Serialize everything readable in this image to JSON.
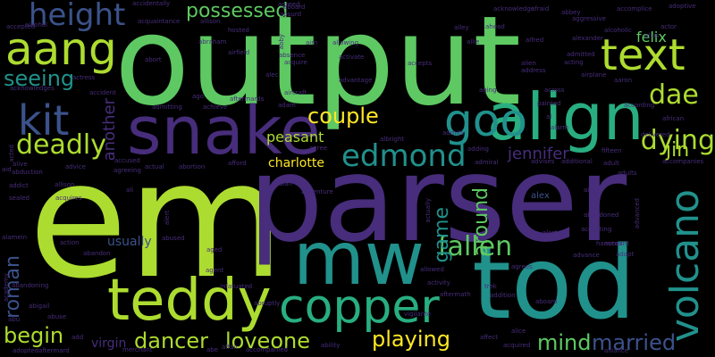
{
  "background": "#000000",
  "palette": {
    "purple": "#440154",
    "indigo": "#472d7b",
    "blue": "#3b528b",
    "steel": "#2c728e",
    "teal": "#21918c",
    "sea": "#28ae80",
    "green": "#5ec962",
    "lime": "#addc30",
    "yellow": "#fde725"
  },
  "words": [
    {
      "text": "output",
      "color": "green"
    },
    {
      "text": "em",
      "color": "lime"
    },
    {
      "text": "parser",
      "color": "indigo"
    },
    {
      "text": "tod",
      "color": "teal"
    },
    {
      "text": "mw",
      "color": "teal"
    },
    {
      "text": "snake",
      "color": "indigo"
    },
    {
      "text": "align",
      "color": "sea"
    },
    {
      "text": "teddy",
      "color": "lime"
    },
    {
      "text": "copper",
      "color": "sea"
    },
    {
      "text": "volcano",
      "color": "teal"
    },
    {
      "text": "text",
      "color": "lime"
    },
    {
      "text": "aang",
      "color": "lime"
    },
    {
      "text": "kit",
      "color": "blue"
    },
    {
      "text": "goo",
      "color": "teal"
    },
    {
      "text": "height",
      "color": "blue"
    },
    {
      "text": "edmond",
      "color": "teal"
    },
    {
      "text": "deadly",
      "color": "lime"
    },
    {
      "text": "couple",
      "color": "yellow"
    },
    {
      "text": "dae",
      "color": "lime"
    },
    {
      "text": "dying",
      "color": "lime"
    },
    {
      "text": "fallen",
      "color": "green"
    },
    {
      "text": "possessed",
      "color": "green"
    },
    {
      "text": "seeing",
      "color": "teal"
    },
    {
      "text": "begin",
      "color": "lime"
    },
    {
      "text": "dancer",
      "color": "lime"
    },
    {
      "text": "loveone",
      "color": "lime"
    },
    {
      "text": "playing",
      "color": "yellow"
    },
    {
      "text": "mind",
      "color": "green"
    },
    {
      "text": "married",
      "color": "blue"
    },
    {
      "text": "jennifer",
      "color": "indigo"
    },
    {
      "text": "jin",
      "color": "lime"
    },
    {
      "text": "roman",
      "color": "blue"
    },
    {
      "text": "around",
      "color": "green"
    },
    {
      "text": "game",
      "color": "teal"
    },
    {
      "text": "another",
      "color": "indigo"
    },
    {
      "text": "charlotte",
      "color": "yellow"
    },
    {
      "text": "peasant",
      "color": "lime"
    },
    {
      "text": "felix",
      "color": "green"
    },
    {
      "text": "usually",
      "color": "blue"
    },
    {
      "text": "virgin",
      "color": "indigo"
    },
    {
      "text": "alex",
      "color": "blue"
    },
    {
      "text": "accidentally",
      "color": "indigo"
    },
    {
      "text": "abbey",
      "color": "indigo"
    },
    {
      "text": "acknowledge",
      "color": "indigo"
    },
    {
      "text": "accomplice",
      "color": "indigo"
    },
    {
      "text": "adoptive",
      "color": "indigo"
    },
    {
      "text": "agreed",
      "color": "indigo"
    },
    {
      "text": "afraid",
      "color": "indigo"
    },
    {
      "text": "accepted",
      "color": "indigo"
    },
    {
      "text": "alcohol",
      "color": "indigo"
    },
    {
      "text": "acquaintance",
      "color": "indigo"
    },
    {
      "text": "absurd",
      "color": "indigo"
    },
    {
      "text": "allison",
      "color": "indigo"
    },
    {
      "text": "hosted",
      "color": "indigo"
    },
    {
      "text": "alley",
      "color": "indigo"
    },
    {
      "text": "ahead",
      "color": "indigo"
    },
    {
      "text": "aggressive",
      "color": "indigo"
    },
    {
      "text": "alcoholic",
      "color": "indigo"
    },
    {
      "text": "actor",
      "color": "indigo"
    },
    {
      "text": "abraham",
      "color": "indigo"
    },
    {
      "text": "allowing",
      "color": "indigo"
    },
    {
      "text": "alfred",
      "color": "indigo"
    },
    {
      "text": "alexander",
      "color": "indigo"
    },
    {
      "text": "alias",
      "color": "indigo"
    },
    {
      "text": "airfield",
      "color": "indigo"
    },
    {
      "text": "abby",
      "color": "indigo"
    },
    {
      "text": "aim",
      "color": "indigo"
    },
    {
      "text": "allie",
      "color": "indigo"
    },
    {
      "text": "admitted",
      "color": "indigo"
    },
    {
      "text": "aboard",
      "color": "indigo"
    },
    {
      "text": "abort",
      "color": "indigo"
    },
    {
      "text": "absence",
      "color": "indigo"
    },
    {
      "text": "acquire",
      "color": "indigo"
    },
    {
      "text": "activate",
      "color": "indigo"
    },
    {
      "text": "accepts",
      "color": "indigo"
    },
    {
      "text": "alien",
      "color": "indigo"
    },
    {
      "text": "address",
      "color": "indigo"
    },
    {
      "text": "airplane",
      "color": "indigo"
    },
    {
      "text": "acting",
      "color": "indigo"
    },
    {
      "text": "acknowledges",
      "color": "indigo"
    },
    {
      "text": "actress",
      "color": "indigo"
    },
    {
      "text": "accident",
      "color": "indigo"
    },
    {
      "text": "alec",
      "color": "indigo"
    },
    {
      "text": "advantage",
      "color": "indigo"
    },
    {
      "text": "aging",
      "color": "indigo"
    },
    {
      "text": "across",
      "color": "indigo"
    },
    {
      "text": "aaron",
      "color": "indigo"
    },
    {
      "text": "ago",
      "color": "indigo"
    },
    {
      "text": "aircraft",
      "color": "indigo"
    },
    {
      "text": "according",
      "color": "indigo"
    },
    {
      "text": "admitting",
      "color": "indigo"
    },
    {
      "text": "achieve",
      "color": "indigo"
    },
    {
      "text": "aftermards",
      "color": "indigo"
    },
    {
      "text": "adam",
      "color": "indigo"
    },
    {
      "text": "painted",
      "color": "indigo"
    },
    {
      "text": "african",
      "color": "indigo"
    },
    {
      "text": "al",
      "color": "indigo"
    },
    {
      "text": "alarm",
      "color": "indigo"
    },
    {
      "text": "delivered",
      "color": "indigo"
    },
    {
      "text": "acted",
      "color": "indigo"
    },
    {
      "text": "accused",
      "color": "indigo"
    },
    {
      "text": "advice",
      "color": "indigo"
    },
    {
      "text": "agreeing",
      "color": "indigo"
    },
    {
      "text": "actual",
      "color": "indigo"
    },
    {
      "text": "abortion",
      "color": "indigo"
    },
    {
      "text": "afford",
      "color": "indigo"
    },
    {
      "text": "agree",
      "color": "indigo"
    },
    {
      "text": "albright",
      "color": "indigo"
    },
    {
      "text": "admits",
      "color": "indigo"
    },
    {
      "text": "adding",
      "color": "indigo"
    },
    {
      "text": "admiral",
      "color": "indigo"
    },
    {
      "text": "advises",
      "color": "indigo"
    },
    {
      "text": "additional",
      "color": "indigo"
    },
    {
      "text": "fifteen",
      "color": "indigo"
    },
    {
      "text": "accompanies",
      "color": "indigo"
    },
    {
      "text": "adult",
      "color": "indigo"
    },
    {
      "text": "adults",
      "color": "indigo"
    },
    {
      "text": "alive",
      "color": "indigo"
    },
    {
      "text": "abduction",
      "color": "indigo"
    },
    {
      "text": "aid",
      "color": "indigo"
    },
    {
      "text": "addict",
      "color": "indigo"
    },
    {
      "text": "allison",
      "color": "indigo"
    },
    {
      "text": "sealed",
      "color": "indigo"
    },
    {
      "text": "acquires",
      "color": "indigo"
    },
    {
      "text": "ali",
      "color": "indigo"
    },
    {
      "text": "aian",
      "color": "indigo"
    },
    {
      "text": "adventure",
      "color": "indigo"
    },
    {
      "text": "actually",
      "color": "indigo"
    },
    {
      "text": "air",
      "color": "indigo"
    },
    {
      "text": "abandoned",
      "color": "indigo"
    },
    {
      "text": "advanced",
      "color": "indigo"
    },
    {
      "text": "alamein",
      "color": "indigo"
    },
    {
      "text": "action",
      "color": "indigo"
    },
    {
      "text": "abused",
      "color": "indigo"
    },
    {
      "text": "alert",
      "color": "indigo"
    },
    {
      "text": "alerted",
      "color": "indigo"
    },
    {
      "text": "abandon",
      "color": "indigo"
    },
    {
      "text": "aged",
      "color": "indigo"
    },
    {
      "text": "hammer",
      "color": "indigo"
    },
    {
      "text": "account",
      "color": "indigo"
    },
    {
      "text": "advance",
      "color": "indigo"
    },
    {
      "text": "adopt",
      "color": "indigo"
    },
    {
      "text": "agrees",
      "color": "indigo"
    },
    {
      "text": "accepting",
      "color": "indigo"
    },
    {
      "text": "agent",
      "color": "indigo"
    },
    {
      "text": "allowed",
      "color": "indigo"
    },
    {
      "text": "abandoning",
      "color": "indigo"
    },
    {
      "text": "academy",
      "color": "indigo"
    },
    {
      "text": "infatuated",
      "color": "indigo"
    },
    {
      "text": "activity",
      "color": "indigo"
    },
    {
      "text": "trek",
      "color": "indigo"
    },
    {
      "text": "abigail",
      "color": "indigo"
    },
    {
      "text": "abuse",
      "color": "indigo"
    },
    {
      "text": "abruptly",
      "color": "indigo"
    },
    {
      "text": "aftermath",
      "color": "indigo"
    },
    {
      "text": "addition",
      "color": "indigo"
    },
    {
      "text": "abu",
      "color": "indigo"
    },
    {
      "text": "vigilante",
      "color": "indigo"
    },
    {
      "text": "alice",
      "color": "indigo"
    },
    {
      "text": "aboard",
      "color": "indigo"
    },
    {
      "text": "affect",
      "color": "indigo"
    },
    {
      "text": "acquired",
      "color": "indigo"
    },
    {
      "text": "add",
      "color": "indigo"
    },
    {
      "text": "ability",
      "color": "indigo"
    },
    {
      "text": "affair",
      "color": "indigo"
    },
    {
      "text": "accompanied",
      "color": "indigo"
    },
    {
      "text": "adoptedaftermard",
      "color": "indigo"
    },
    {
      "text": "merchant",
      "color": "indigo"
    },
    {
      "text": "abe",
      "color": "indigo"
    },
    {
      "text": "alliance",
      "color": "indigo"
    }
  ]
}
